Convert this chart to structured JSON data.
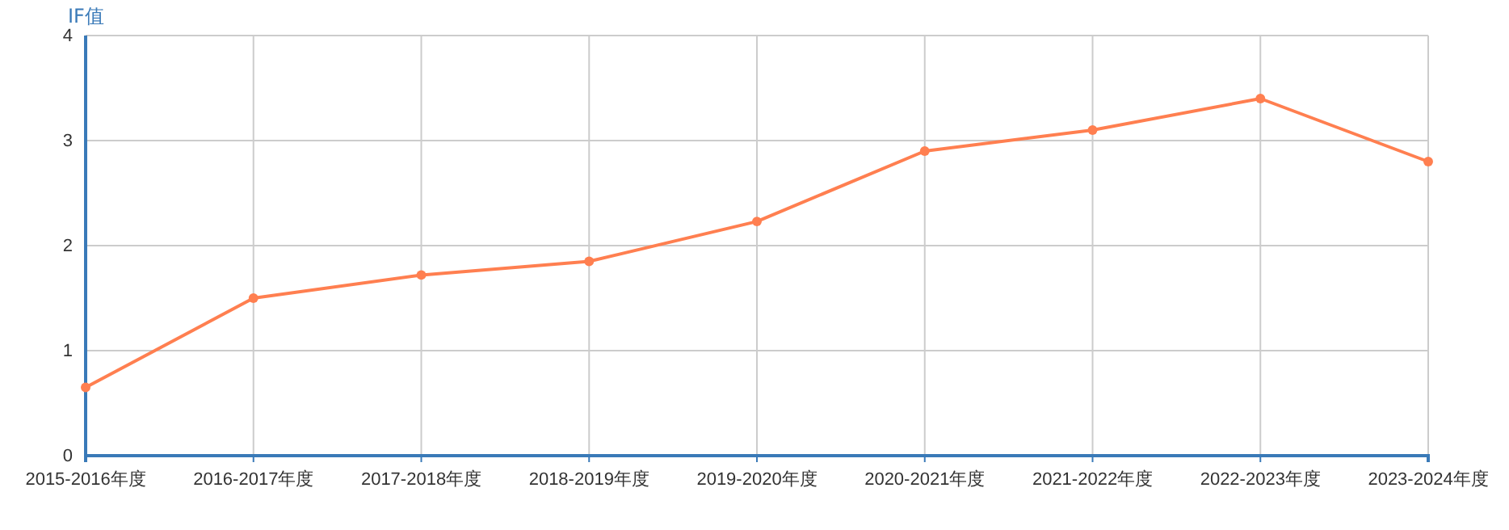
{
  "chart_data": {
    "type": "line",
    "ylabel": "IF值",
    "categories": [
      "2015-2016年度",
      "2016-2017年度",
      "2017-2018年度",
      "2018-2019年度",
      "2019-2020年度",
      "2020-2021年度",
      "2021-2022年度",
      "2022-2023年度",
      "2023-2024年度"
    ],
    "series": [
      {
        "color": "#ff7f50",
        "values": [
          0.65,
          1.5,
          1.72,
          1.85,
          2.23,
          2.9,
          3.1,
          3.4,
          2.8
        ]
      }
    ],
    "ylim": [
      0,
      4
    ],
    "yticks": [
      0,
      1,
      2,
      3,
      4
    ],
    "grid": true,
    "marker": "circle",
    "line_style": "solid"
  }
}
